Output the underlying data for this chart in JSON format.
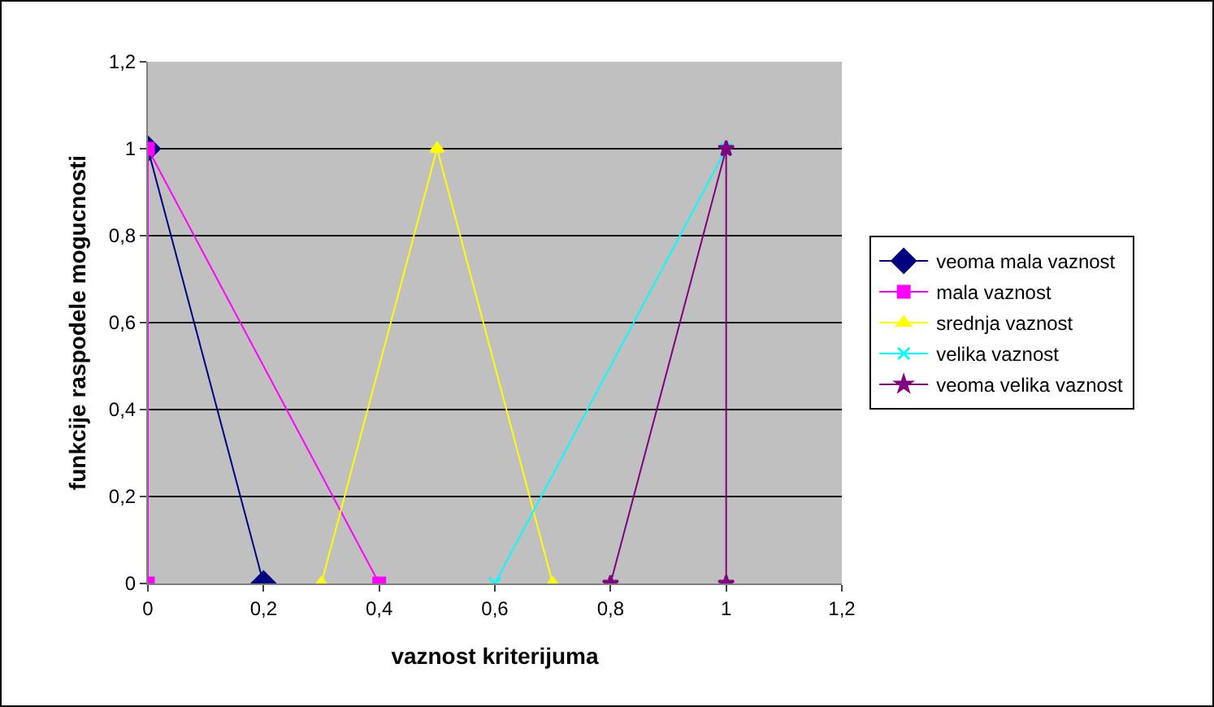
{
  "chart_data": {
    "type": "line",
    "xlabel": "vaznost kriterijuma",
    "ylabel": "funkcije raspodele mogucnosti",
    "xlim": [
      0,
      1.2
    ],
    "ylim": [
      0,
      1.2
    ],
    "xticks": [
      0,
      {
        "value": 0.2,
        "label": "0,2"
      },
      {
        "value": 0.4,
        "label": "0,4"
      },
      {
        "value": 0.6,
        "label": "0,6"
      },
      {
        "value": 0.8,
        "label": "0,8"
      },
      1,
      {
        "value": 1.2,
        "label": "1,2"
      }
    ],
    "yticks": [
      0,
      {
        "value": 0.2,
        "label": "0,2"
      },
      {
        "value": 0.4,
        "label": "0,4"
      },
      {
        "value": 0.6,
        "label": "0,6"
      },
      {
        "value": 0.8,
        "label": "0,8"
      },
      1,
      {
        "value": 1.2,
        "label": "1,2"
      }
    ],
    "grid": "y",
    "legend": "right",
    "series": [
      {
        "name": "veoma mala vaznost",
        "color": "#000080",
        "marker": "diamond",
        "x": [
          0,
          0.2
        ],
        "values": [
          1,
          0
        ]
      },
      {
        "name": "mala vaznost",
        "color": "#ff00ff",
        "marker": "square",
        "x": [
          0,
          0,
          0.4
        ],
        "values": [
          0,
          1,
          0
        ]
      },
      {
        "name": "srednja vaznost",
        "color": "#ffff00",
        "marker": "triangle",
        "x": [
          0.3,
          0.5,
          0.7
        ],
        "values": [
          0,
          1,
          0
        ]
      },
      {
        "name": "velika vaznost",
        "color": "#00ffff",
        "marker": "cross",
        "x": [
          0.6,
          1
        ],
        "values": [
          0,
          1
        ]
      },
      {
        "name": "veoma velika vaznost",
        "color": "#800080",
        "marker": "star",
        "x": [
          0.8,
          1,
          1
        ],
        "values": [
          0,
          1,
          0
        ]
      }
    ]
  }
}
